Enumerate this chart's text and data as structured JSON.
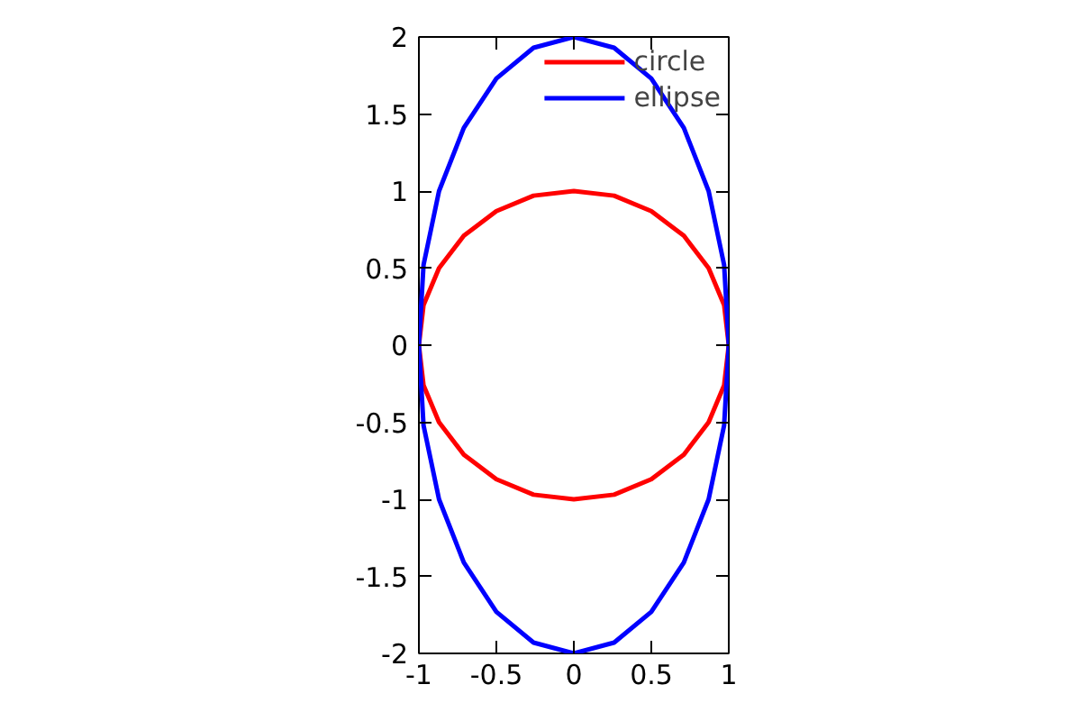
{
  "chart_data": {
    "type": "line",
    "series": [
      {
        "name": "circle",
        "color": "#ff0000",
        "x": [
          -1,
          -0.97,
          -0.87,
          -0.71,
          -0.5,
          -0.26,
          0,
          0.26,
          0.5,
          0.71,
          0.87,
          0.97,
          1,
          null,
          -1,
          -0.97,
          -0.87,
          -0.71,
          -0.5,
          -0.26,
          0,
          0.26,
          0.5,
          0.71,
          0.87,
          0.97,
          1
        ],
        "values": [
          0,
          0.26,
          0.5,
          0.71,
          0.87,
          0.97,
          1,
          0.97,
          0.87,
          0.71,
          0.5,
          0.26,
          0,
          null,
          0,
          -0.26,
          -0.5,
          -0.71,
          -0.87,
          -0.97,
          -1,
          -0.97,
          -0.87,
          -0.71,
          -0.5,
          -0.26,
          0
        ]
      },
      {
        "name": "ellipse",
        "color": "#0000ff",
        "x": [
          -1,
          -0.97,
          -0.87,
          -0.71,
          -0.5,
          -0.26,
          0,
          0.26,
          0.5,
          0.71,
          0.87,
          0.97,
          1,
          null,
          -1,
          -0.97,
          -0.87,
          -0.71,
          -0.5,
          -0.26,
          0,
          0.26,
          0.5,
          0.71,
          0.87,
          0.97,
          1
        ],
        "values": [
          0,
          0.52,
          1,
          1.41,
          1.73,
          1.93,
          2,
          1.93,
          1.73,
          1.41,
          1,
          0.52,
          0,
          null,
          0,
          -0.52,
          -1,
          -1.41,
          -1.73,
          -1.93,
          -2,
          -1.93,
          -1.73,
          -1.41,
          -1,
          -0.52,
          0
        ]
      }
    ],
    "xlim": [
      -1,
      1
    ],
    "ylim": [
      -2,
      2
    ],
    "xticks": [
      -1,
      -0.5,
      0,
      0.5,
      1
    ],
    "yticks": [
      -2,
      -1.5,
      -1,
      -0.5,
      0,
      0.5,
      1,
      1.5,
      2
    ],
    "grid": false,
    "legend": "top right",
    "marker": "none",
    "line_style": "solid"
  }
}
